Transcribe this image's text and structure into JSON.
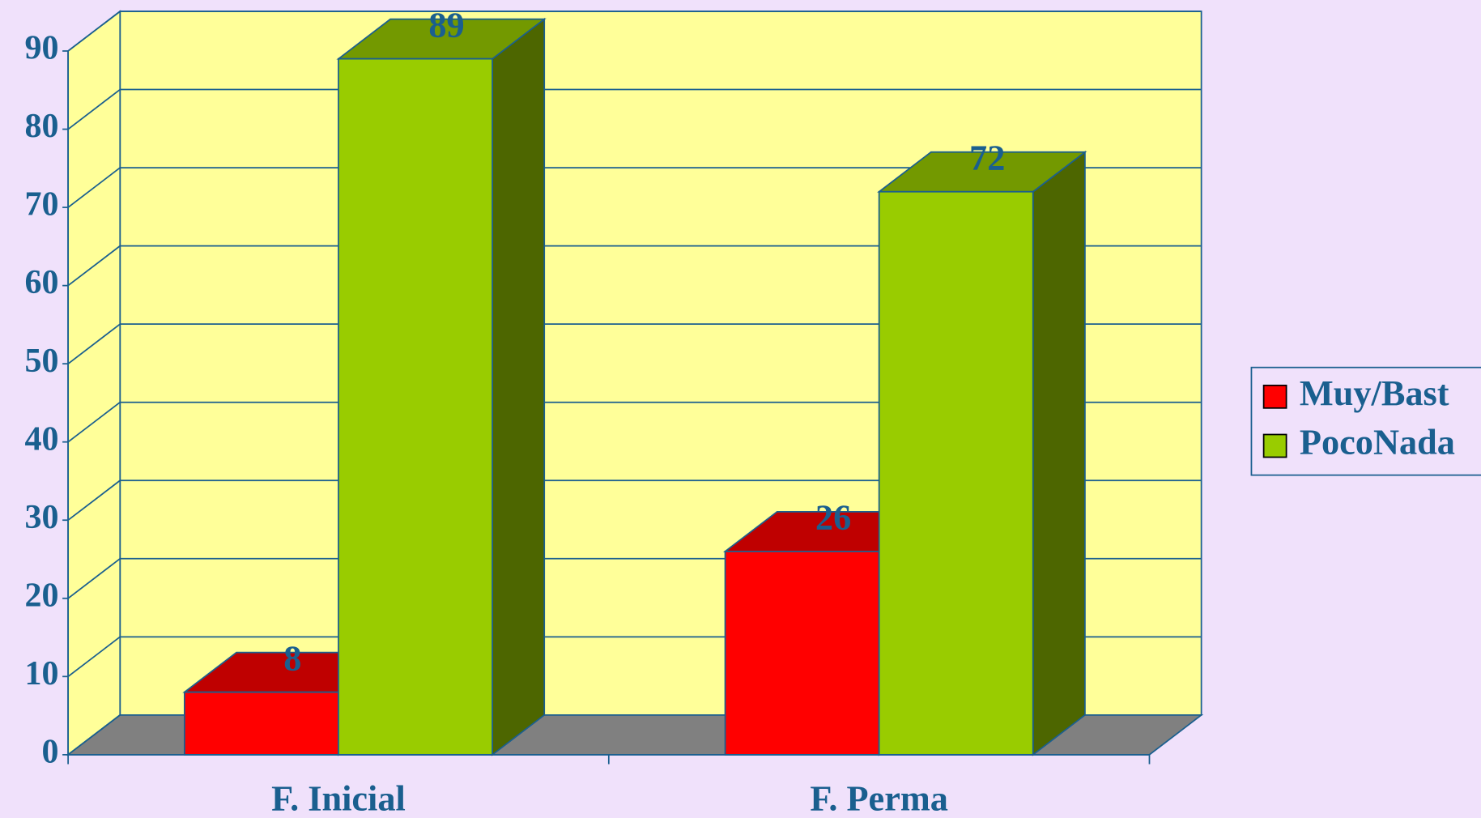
{
  "chart_data": {
    "type": "bar3d",
    "categories": [
      "F. Inicial",
      "F. Perma"
    ],
    "series": [
      {
        "name": "Muy/Bast",
        "color": "#ff0000",
        "values": [
          8,
          26
        ]
      },
      {
        "name": "PocoNada",
        "color": "#99cc00",
        "values": [
          89,
          72
        ]
      }
    ],
    "ylim": [
      0,
      90
    ],
    "yticks": [
      0,
      10,
      20,
      30,
      40,
      50,
      60,
      70,
      80,
      90
    ],
    "grid": true,
    "legend": "right"
  }
}
